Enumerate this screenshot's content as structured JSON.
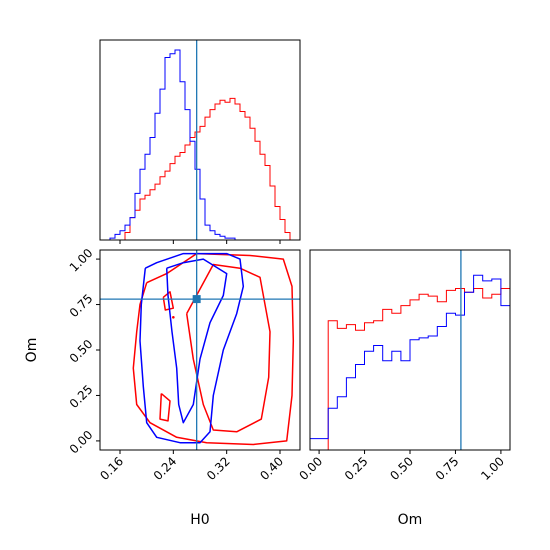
{
  "chart_data": {
    "type": "corner",
    "parameters": [
      "H0",
      "Om"
    ],
    "colors": {
      "red": "#ff0000",
      "blue": "#0000ff",
      "truth": "#1f77b4"
    },
    "truth": {
      "H0": 0.275,
      "Om": 0.78
    },
    "axes": {
      "H0": {
        "range": [
          0.13,
          0.43
        ],
        "ticks": [
          0.16,
          0.24,
          0.32,
          0.4
        ],
        "tick_labels": [
          "0.16",
          "0.24",
          "0.32",
          "0.40"
        ],
        "label": "H0"
      },
      "Om": {
        "range": [
          -0.05,
          1.05
        ],
        "ticks": [
          0.0,
          0.25,
          0.5,
          0.75,
          1.0
        ],
        "tick_labels": [
          "0.00",
          "0.25",
          "0.50",
          "0.75",
          "1.00"
        ],
        "label": "Om"
      }
    },
    "h0_hist": {
      "edges_start": 0.13,
      "bin_width": 0.0075,
      "red": [
        0,
        0,
        0,
        0,
        0,
        0.04,
        0.12,
        0.16,
        0.22,
        0.24,
        0.27,
        0.3,
        0.34,
        0.37,
        0.41,
        0.45,
        0.47,
        0.51,
        0.55,
        0.58,
        0.61,
        0.66,
        0.7,
        0.73,
        0.75,
        0.74,
        0.76,
        0.73,
        0.69,
        0.66,
        0.6,
        0.53,
        0.46,
        0.4,
        0.29,
        0.18,
        0.11,
        0.04,
        0.0,
        0.0
      ],
      "blue": [
        0,
        0,
        0.01,
        0.03,
        0.05,
        0.08,
        0.12,
        0.25,
        0.38,
        0.46,
        0.55,
        0.68,
        0.81,
        0.98,
        1.0,
        1.02,
        0.85,
        0.7,
        0.53,
        0.38,
        0.22,
        0.08,
        0.05,
        0.03,
        0.02,
        0.01,
        0.01,
        0,
        0,
        0,
        0,
        0,
        0,
        0,
        0,
        0,
        0,
        0,
        0,
        0
      ]
    },
    "om_hist": {
      "edges_start": -0.05,
      "bin_width": 0.05,
      "red": [
        0.0,
        0.0,
        0.68,
        0.64,
        0.66,
        0.63,
        0.67,
        0.68,
        0.74,
        0.72,
        0.76,
        0.79,
        0.82,
        0.81,
        0.78,
        0.84,
        0.85,
        0.83,
        0.85,
        0.8,
        0.82,
        0.85,
        0.84,
        0.3
      ],
      "blue": [
        0.06,
        0.06,
        0.22,
        0.28,
        0.38,
        0.45,
        0.52,
        0.55,
        0.47,
        0.52,
        0.47,
        0.58,
        0.59,
        0.6,
        0.65,
        0.72,
        0.71,
        0.83,
        0.92,
        0.89,
        0.9,
        0.76,
        0.41,
        0.4
      ]
    },
    "contours_2d": [
      {
        "color": "red",
        "points": [
          [
            0.2,
            0.87
          ],
          [
            0.23,
            0.92
          ],
          [
            0.275,
            1.03
          ],
          [
            0.355,
            1.02
          ],
          [
            0.405,
            1.0
          ],
          [
            0.418,
            0.85
          ],
          [
            0.42,
            0.55
          ],
          [
            0.418,
            0.25
          ],
          [
            0.41,
            0.0
          ],
          [
            0.36,
            -0.02
          ],
          [
            0.29,
            -0.01
          ],
          [
            0.245,
            0.02
          ],
          [
            0.205,
            0.1
          ],
          [
            0.185,
            0.2
          ],
          [
            0.18,
            0.4
          ],
          [
            0.185,
            0.6
          ],
          [
            0.19,
            0.75
          ],
          [
            0.2,
            0.87
          ]
        ]
      },
      {
        "color": "red",
        "points": [
          [
            0.26,
            0.7
          ],
          [
            0.3,
            0.97
          ],
          [
            0.34,
            0.95
          ],
          [
            0.37,
            0.9
          ],
          [
            0.385,
            0.6
          ],
          [
            0.383,
            0.35
          ],
          [
            0.372,
            0.12
          ],
          [
            0.335,
            0.05
          ],
          [
            0.3,
            0.06
          ],
          [
            0.285,
            0.2
          ],
          [
            0.27,
            0.45
          ],
          [
            0.26,
            0.7
          ]
        ]
      },
      {
        "color": "red",
        "points": [
          [
            0.222,
            0.26
          ],
          [
            0.235,
            0.22
          ],
          [
            0.232,
            0.11
          ],
          [
            0.22,
            0.12
          ],
          [
            0.222,
            0.26
          ]
        ]
      },
      {
        "color": "red",
        "points": [
          [
            0.225,
            0.79
          ],
          [
            0.235,
            0.82
          ],
          [
            0.24,
            0.73
          ],
          [
            0.228,
            0.72
          ],
          [
            0.225,
            0.79
          ]
        ]
      },
      {
        "color": "blue",
        "points": [
          [
            0.198,
            0.95
          ],
          [
            0.215,
            0.98
          ],
          [
            0.255,
            1.03
          ],
          [
            0.32,
            1.03
          ],
          [
            0.34,
            1.0
          ],
          [
            0.345,
            0.85
          ],
          [
            0.335,
            0.7
          ],
          [
            0.315,
            0.5
          ],
          [
            0.3,
            0.25
          ],
          [
            0.295,
            0.05
          ],
          [
            0.28,
            -0.01
          ],
          [
            0.25,
            -0.01
          ],
          [
            0.215,
            0.02
          ],
          [
            0.2,
            0.1
          ],
          [
            0.195,
            0.3
          ],
          [
            0.19,
            0.55
          ],
          [
            0.192,
            0.75
          ],
          [
            0.198,
            0.95
          ]
        ]
      },
      {
        "color": "blue",
        "points": [
          [
            0.23,
            0.95
          ],
          [
            0.255,
            0.98
          ],
          [
            0.285,
            1.0
          ],
          [
            0.32,
            0.92
          ],
          [
            0.315,
            0.8
          ],
          [
            0.295,
            0.65
          ],
          [
            0.28,
            0.45
          ],
          [
            0.27,
            0.2
          ],
          [
            0.255,
            0.1
          ],
          [
            0.248,
            0.2
          ],
          [
            0.245,
            0.4
          ],
          [
            0.238,
            0.6
          ],
          [
            0.232,
            0.8
          ],
          [
            0.23,
            0.95
          ]
        ]
      }
    ]
  }
}
